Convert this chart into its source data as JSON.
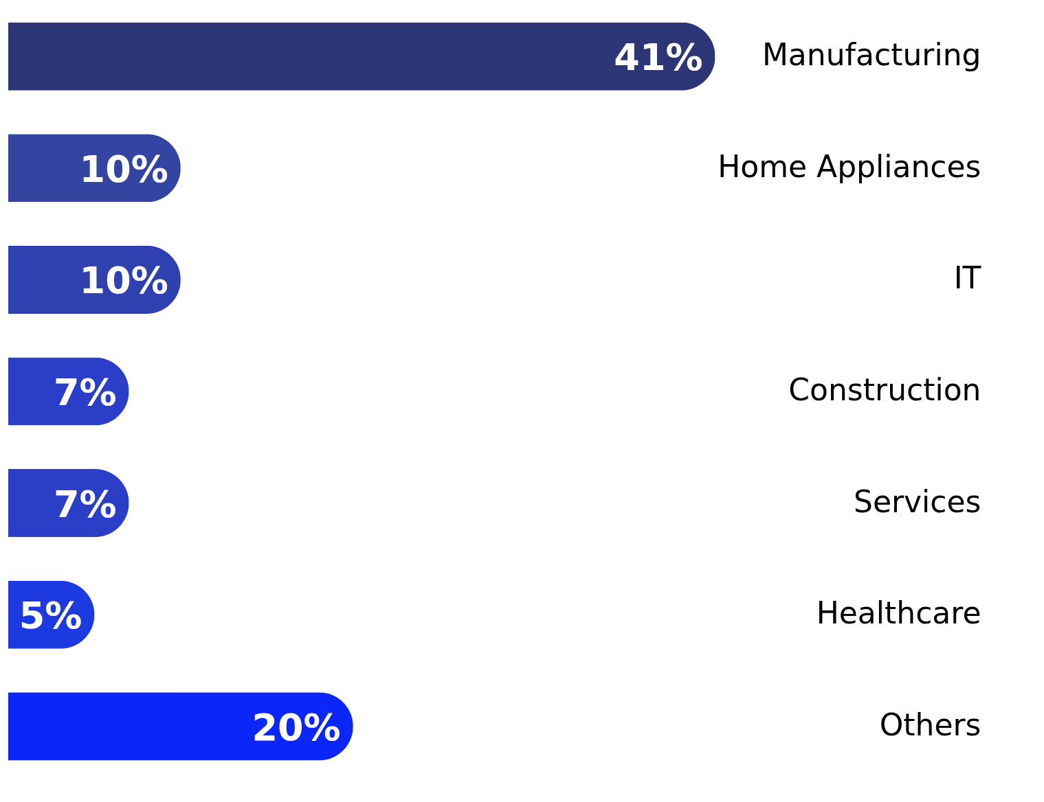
{
  "chart_data": {
    "type": "bar",
    "orientation": "horizontal",
    "categories": [
      "Manufacturing",
      "Home Appliances",
      "IT",
      "Construction",
      "Services",
      "Healthcare",
      "Others"
    ],
    "values": [
      41,
      10,
      10,
      7,
      7,
      5,
      20
    ],
    "colors": [
      "#2c3677",
      "#3345a0",
      "#2f40b0",
      "#2a3ec8",
      "#2a3ec8",
      "#1c3ae0",
      "#0a26f8"
    ],
    "value_labels": [
      "41%",
      "10%",
      "10%",
      "7%",
      "7%",
      "5%",
      "20%"
    ],
    "grid": false
  }
}
